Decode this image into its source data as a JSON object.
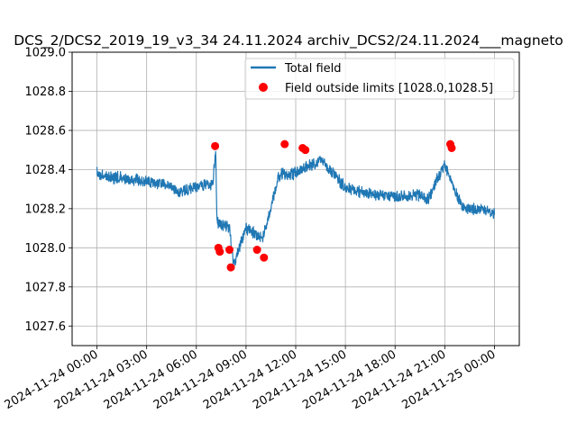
{
  "chart_data": {
    "type": "line",
    "title": "DCS_2/DCS2_2019_19_v3_34 24.11.2024 archiv_DCS2/24.11.2024___magneto",
    "xlabel": "",
    "ylabel": "",
    "ylim": [
      1027.5,
      1029.0
    ],
    "xlim": [
      "2024-11-23 22:30",
      "2024-11-25 01:30"
    ],
    "grid": true,
    "legend_position": "top-right",
    "x_ticks": [
      "2024-11-24 00:00",
      "2024-11-24 03:00",
      "2024-11-24 06:00",
      "2024-11-24 09:00",
      "2024-11-24 12:00",
      "2024-11-24 15:00",
      "2024-11-24 18:00",
      "2024-11-24 21:00",
      "2024-11-25 00:00"
    ],
    "y_ticks": [
      "1027.6",
      "1027.8",
      "1028.0",
      "1028.2",
      "1028.4",
      "1028.6",
      "1028.8",
      "1029.0"
    ],
    "series": [
      {
        "name": "Total field",
        "kind": "line",
        "color": "#1f77b4",
        "points": [
          [
            "2024-11-24 00:00",
            1028.38
          ],
          [
            "2024-11-24 01:00",
            1028.36
          ],
          [
            "2024-11-24 02:00",
            1028.35
          ],
          [
            "2024-11-24 03:00",
            1028.34
          ],
          [
            "2024-11-24 04:00",
            1028.33
          ],
          [
            "2024-11-24 05:00",
            1028.28
          ],
          [
            "2024-11-24 06:00",
            1028.31
          ],
          [
            "2024-11-24 07:00",
            1028.33
          ],
          [
            "2024-11-24 07:10",
            1028.51
          ],
          [
            "2024-11-24 07:15",
            1028.13
          ],
          [
            "2024-11-24 08:00",
            1028.1
          ],
          [
            "2024-11-24 08:15",
            1027.91
          ],
          [
            "2024-11-24 09:00",
            1028.1
          ],
          [
            "2024-11-24 10:00",
            1028.05
          ],
          [
            "2024-11-24 11:00",
            1028.37
          ],
          [
            "2024-11-24 12:00",
            1028.38
          ],
          [
            "2024-11-24 13:30",
            1028.45
          ],
          [
            "2024-11-24 15:00",
            1028.31
          ],
          [
            "2024-11-24 16:00",
            1028.28
          ],
          [
            "2024-11-24 18:00",
            1028.26
          ],
          [
            "2024-11-24 19:30",
            1028.27
          ],
          [
            "2024-11-24 20:00",
            1028.25
          ],
          [
            "2024-11-24 21:00",
            1028.43
          ],
          [
            "2024-11-24 22:00",
            1028.21
          ],
          [
            "2024-11-25 00:00",
            1028.18
          ]
        ],
        "noise_amplitude": 0.035
      },
      {
        "name": "Field outside limits [1028.0,1028.5]",
        "kind": "scatter",
        "color": "#ff0000",
        "points": [
          [
            "2024-11-24 07:08",
            1028.52
          ],
          [
            "2024-11-24 07:20",
            1028.0
          ],
          [
            "2024-11-24 07:25",
            1027.98
          ],
          [
            "2024-11-24 08:00",
            1027.99
          ],
          [
            "2024-11-24 08:05",
            1027.9
          ],
          [
            "2024-11-24 09:40",
            1027.99
          ],
          [
            "2024-11-24 10:05",
            1027.95
          ],
          [
            "2024-11-24 11:20",
            1028.53
          ],
          [
            "2024-11-24 12:25",
            1028.51
          ],
          [
            "2024-11-24 12:35",
            1028.5
          ],
          [
            "2024-11-24 21:20",
            1028.53
          ],
          [
            "2024-11-24 21:25",
            1028.51
          ]
        ]
      }
    ]
  }
}
